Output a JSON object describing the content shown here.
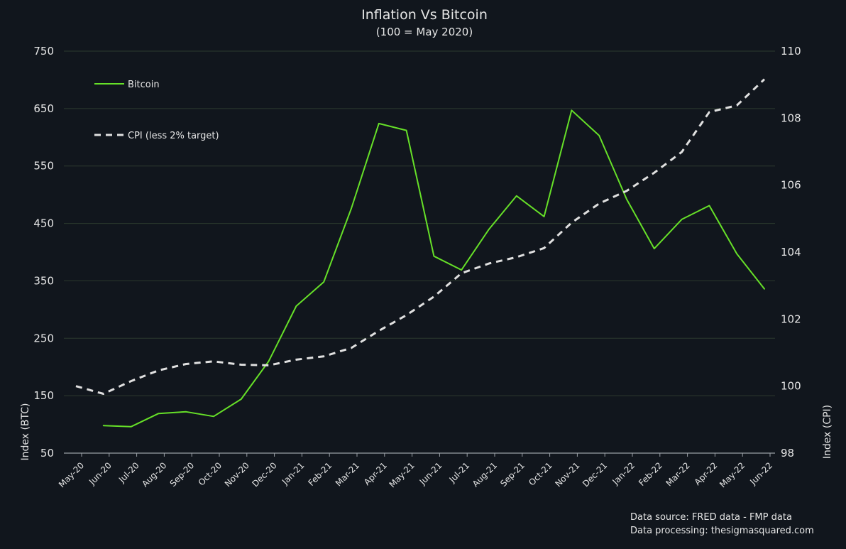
{
  "chart_data": {
    "type": "line",
    "title": "Inflation Vs Bitcoin",
    "subtitle": "(100 = May 2020)",
    "x": [
      "May-20",
      "Jun-20",
      "Jul-20",
      "Aug-20",
      "Sep-20",
      "Oct-20",
      "Nov-20",
      "Dec-20",
      "Jan-21",
      "Feb-21",
      "Mar-21",
      "Apr-21",
      "May-21",
      "Jun-21",
      "Jul-21",
      "Aug-21",
      "Sep-21",
      "Oct-21",
      "Nov-21",
      "Dec-21",
      "Jan-22",
      "Feb-22",
      "Mar-22",
      "Apr-22",
      "May-22",
      "Jun-22"
    ],
    "series": [
      {
        "name": "Bitcoin",
        "axis": "left",
        "color": "#66e028",
        "style": "solid",
        "values": [
          null,
          98,
          96,
          119,
          122,
          114,
          144,
          210,
          306,
          348,
          476,
          624,
          612,
          393,
          369,
          440,
          498,
          462,
          647,
          603,
          492,
          406,
          457,
          481,
          397,
          336
        ]
      },
      {
        "name": "CPI (less 2% target)",
        "axis": "right",
        "color": "#e0e0e0",
        "style": "dashed",
        "values": [
          100,
          99.77,
          100.15,
          100.47,
          100.66,
          100.74,
          100.64,
          100.62,
          100.79,
          100.89,
          101.14,
          101.65,
          102.12,
          102.67,
          103.37,
          103.66,
          103.85,
          104.12,
          104.88,
          105.45,
          105.83,
          106.37,
          106.99,
          108.18,
          108.38,
          109.16
        ]
      }
    ],
    "ylabel": "Index (BTC)",
    "ylim": [
      50,
      750
    ],
    "yticks": [
      50,
      150,
      250,
      350,
      450,
      550,
      650,
      750
    ],
    "y2label": "Index (CPI)",
    "y2lim": [
      98,
      110
    ],
    "y2ticks": [
      98,
      100,
      102,
      104,
      106,
      108,
      110
    ],
    "grid": true,
    "legend_placement": "top-left"
  },
  "source_lines": [
    "Data source: FRED data - FMP data",
    "Data processing: thesigmasquared.com"
  ]
}
